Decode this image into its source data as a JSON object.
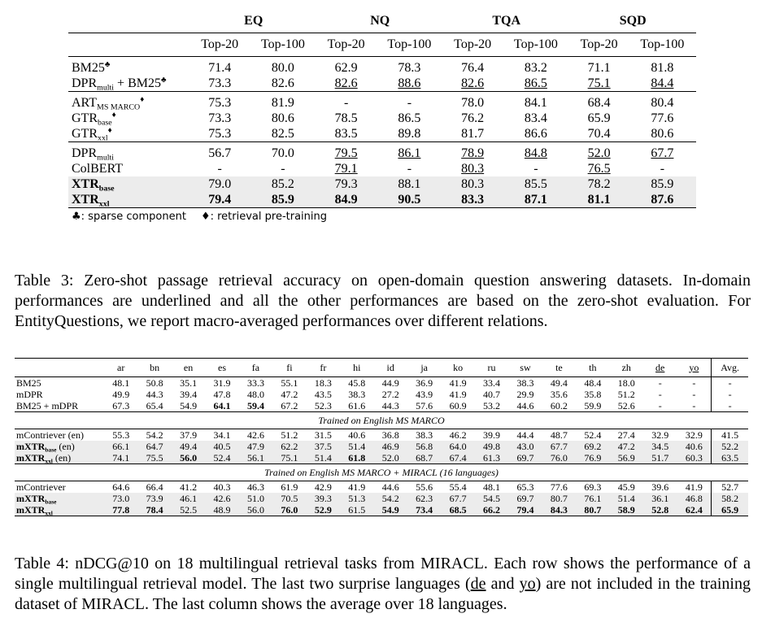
{
  "table3": {
    "groups": [
      "EQ",
      "NQ",
      "TQA",
      "SQD"
    ],
    "subheaders": [
      "Top-20",
      "Top-100",
      "Top-20",
      "Top-100",
      "Top-20",
      "Top-100",
      "Top-20",
      "Top-100"
    ],
    "row_groups": [
      [
        {
          "name": [
            {
              "text": "BM25"
            },
            {
              "text": "♣",
              "style": "sup"
            }
          ],
          "cells": [
            "71.4",
            "80.0",
            "62.9",
            "78.3",
            "76.4",
            "83.2",
            "71.1",
            "81.8"
          ]
        },
        {
          "name": [
            {
              "text": "DPR"
            },
            {
              "text": "multi",
              "style": "sub"
            },
            {
              "text": " + BM25"
            },
            {
              "text": "♣",
              "style": "sup"
            }
          ],
          "cells": [
            "73.3",
            "82.6",
            "82.6",
            "88.6",
            "82.6",
            "86.5",
            "75.1",
            "84.4"
          ],
          "underline": [
            2,
            3,
            4,
            5,
            6,
            7
          ]
        }
      ],
      [
        {
          "name": [
            {
              "text": "ART"
            },
            {
              "text": "MS MARCO",
              "style": "sub"
            },
            {
              "text": "♦",
              "style": "sup"
            }
          ],
          "cells": [
            "75.3",
            "81.9",
            "-",
            "-",
            "78.0",
            "84.1",
            "68.4",
            "80.4"
          ]
        },
        {
          "name": [
            {
              "text": "GTR"
            },
            {
              "text": "base",
              "style": "sub"
            },
            {
              "text": "♦",
              "style": "sup"
            }
          ],
          "cells": [
            "73.3",
            "80.6",
            "78.5",
            "86.5",
            "76.2",
            "83.4",
            "65.9",
            "77.6"
          ]
        },
        {
          "name": [
            {
              "text": "GTR"
            },
            {
              "text": "xxl",
              "style": "sub"
            },
            {
              "text": "♦",
              "style": "sup"
            }
          ],
          "cells": [
            "75.3",
            "82.5",
            "83.5",
            "89.8",
            "81.7",
            "86.6",
            "70.4",
            "80.6"
          ]
        }
      ],
      [
        {
          "name": [
            {
              "text": "DPR"
            },
            {
              "text": "multi",
              "style": "sub"
            }
          ],
          "cells": [
            "56.7",
            "70.0",
            "79.5",
            "86.1",
            "78.9",
            "84.8",
            "52.0",
            "67.7"
          ],
          "underline": [
            2,
            3,
            4,
            5,
            6,
            7
          ]
        },
        {
          "name": [
            {
              "text": "ColBERT"
            }
          ],
          "cells": [
            "-",
            "-",
            "79.1",
            "-",
            "80.3",
            "-",
            "76.5",
            "-"
          ],
          "underline": [
            2,
            4,
            6
          ]
        },
        {
          "name": [
            {
              "text": "XTR"
            },
            {
              "text": "base",
              "style": "sub"
            }
          ],
          "cells": [
            "79.0",
            "85.2",
            "79.3",
            "88.1",
            "80.3",
            "85.5",
            "78.2",
            "85.9"
          ],
          "bold_name": true,
          "shaded": true
        },
        {
          "name": [
            {
              "text": "XTR"
            },
            {
              "text": "xxl",
              "style": "sub"
            }
          ],
          "cells": [
            "79.4",
            "85.9",
            "84.9",
            "90.5",
            "83.3",
            "87.1",
            "81.1",
            "87.6"
          ],
          "bold_name": true,
          "bold": [
            0,
            1,
            2,
            3,
            4,
            5,
            6,
            7
          ],
          "shaded": true
        }
      ]
    ],
    "legend": [
      "♣: sparse component",
      "♦: retrieval pre-training"
    ],
    "caption": "Table 3: Zero-shot passage retrieval accuracy on open-domain question answering datasets. In-domain performances are underlined and all the other performances are based on the zero-shot evaluation. For EntityQuestions, we report macro-averaged performances over different relations."
  },
  "table4": {
    "columns": [
      "ar",
      "bn",
      "en",
      "es",
      "fa",
      "fi",
      "fr",
      "hi",
      "id",
      "ja",
      "ko",
      "ru",
      "sw",
      "te",
      "th",
      "zh",
      "de",
      "yo",
      "Avg."
    ],
    "underlined_columns": [
      16,
      17
    ],
    "blocks": [
      {
        "rows": [
          {
            "name": [
              {
                "text": "BM25"
              }
            ],
            "cells": [
              "48.1",
              "50.8",
              "35.1",
              "31.9",
              "33.3",
              "55.1",
              "18.3",
              "45.8",
              "44.9",
              "36.9",
              "41.9",
              "33.4",
              "38.3",
              "49.4",
              "48.4",
              "18.0",
              "-",
              "-",
              "-"
            ]
          },
          {
            "name": [
              {
                "text": "mDPR"
              }
            ],
            "cells": [
              "49.9",
              "44.3",
              "39.4",
              "47.8",
              "48.0",
              "47.2",
              "43.5",
              "38.3",
              "27.2",
              "43.9",
              "41.9",
              "40.7",
              "29.9",
              "35.6",
              "35.8",
              "51.2",
              "-",
              "-",
              "-"
            ]
          },
          {
            "name": [
              {
                "text": "BM25 + mDPR"
              }
            ],
            "cells": [
              "67.3",
              "65.4",
              "54.9",
              "64.1",
              "59.4",
              "67.2",
              "52.3",
              "61.6",
              "44.3",
              "57.6",
              "60.9",
              "53.2",
              "44.6",
              "60.2",
              "59.9",
              "52.6",
              "-",
              "-",
              "-"
            ],
            "bold": [
              3,
              4
            ]
          }
        ]
      },
      {
        "title": "Trained on English MS MARCO",
        "rows": [
          {
            "name": [
              {
                "text": "mContriever (en)"
              }
            ],
            "cells": [
              "55.3",
              "54.2",
              "37.9",
              "34.1",
              "42.6",
              "51.2",
              "31.5",
              "40.6",
              "36.8",
              "38.3",
              "46.2",
              "39.9",
              "44.4",
              "48.7",
              "52.4",
              "27.4",
              "32.9",
              "32.9",
              "41.5"
            ]
          },
          {
            "name": [
              {
                "text": "mXTR",
                "style": "bold"
              },
              {
                "text": "base",
                "style": "boldsub"
              },
              {
                "text": " (en)"
              }
            ],
            "cells": [
              "66.1",
              "64.7",
              "49.4",
              "40.5",
              "47.9",
              "62.2",
              "37.5",
              "51.4",
              "46.9",
              "56.8",
              "64.0",
              "49.8",
              "43.0",
              "67.7",
              "69.2",
              "47.2",
              "34.5",
              "40.6",
              "52.2"
            ],
            "shaded": true
          },
          {
            "name": [
              {
                "text": "mXTR",
                "style": "bold"
              },
              {
                "text": "xxl",
                "style": "boldsub"
              },
              {
                "text": " (en)"
              }
            ],
            "cells": [
              "74.1",
              "75.5",
              "56.0",
              "52.4",
              "56.1",
              "75.1",
              "51.4",
              "61.8",
              "52.0",
              "68.7",
              "67.4",
              "61.3",
              "69.7",
              "76.0",
              "76.9",
              "56.9",
              "51.7",
              "60.3",
              "63.5"
            ],
            "bold": [
              2,
              7
            ],
            "shaded": true
          }
        ]
      },
      {
        "title": "Trained on English MS MARCO + MIRACL (16 languages)",
        "rows": [
          {
            "name": [
              {
                "text": "mContriever"
              }
            ],
            "cells": [
              "64.6",
              "66.4",
              "41.2",
              "40.3",
              "46.3",
              "61.9",
              "42.9",
              "41.9",
              "44.6",
              "55.6",
              "55.4",
              "48.1",
              "65.3",
              "77.6",
              "69.3",
              "45.9",
              "39.6",
              "41.9",
              "52.7"
            ]
          },
          {
            "name": [
              {
                "text": "mXTR",
                "style": "bold"
              },
              {
                "text": "base",
                "style": "boldsub"
              }
            ],
            "cells": [
              "73.0",
              "73.9",
              "46.1",
              "42.6",
              "51.0",
              "70.5",
              "39.3",
              "51.3",
              "54.2",
              "62.3",
              "67.7",
              "54.5",
              "69.7",
              "80.7",
              "76.1",
              "51.4",
              "36.1",
              "46.8",
              "58.2"
            ],
            "shaded": true
          },
          {
            "name": [
              {
                "text": "mXTR",
                "style": "bold"
              },
              {
                "text": "xxl",
                "style": "boldsub"
              }
            ],
            "cells": [
              "77.8",
              "78.4",
              "52.5",
              "48.9",
              "56.0",
              "76.0",
              "52.9",
              "61.5",
              "54.9",
              "73.4",
              "68.5",
              "66.2",
              "79.4",
              "84.3",
              "80.7",
              "58.9",
              "52.8",
              "62.4",
              "65.9"
            ],
            "bold": [
              0,
              1,
              5,
              6,
              8,
              9,
              10,
              11,
              12,
              13,
              14,
              15,
              16,
              17,
              18
            ],
            "shaded": true
          }
        ]
      }
    ],
    "caption": [
      {
        "text": "Table 4: nDCG@10 on 18 multilingual retrieval tasks from MIRACL. Each row shows the performance of a single multilingual retrieval model. The last two surprise languages ("
      },
      {
        "text": "de",
        "style": "underline"
      },
      {
        "text": " and "
      },
      {
        "text": "yo",
        "style": "underline"
      },
      {
        "text": ") are not included in the training dataset of MIRACL. The last column shows the average over 18 languages."
      }
    ]
  }
}
